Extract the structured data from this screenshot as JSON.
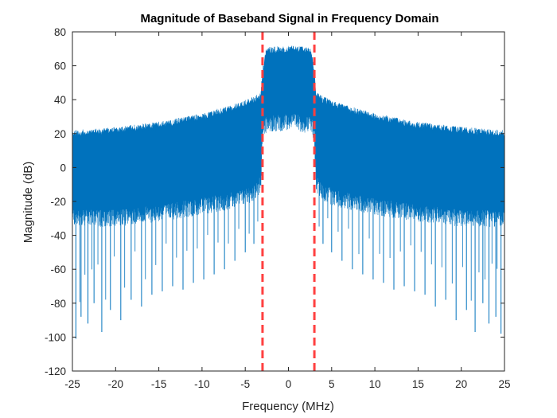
{
  "chart_data": {
    "type": "line",
    "title": "Magnitude of Baseband Signal in Frequency Domain",
    "xlabel": "Frequency (MHz)",
    "ylabel": "Magnitude (dB)",
    "xlim": [
      -25,
      25
    ],
    "ylim": [
      -120,
      80
    ],
    "xticks": [
      -25,
      -20,
      -15,
      -10,
      -5,
      0,
      5,
      10,
      15,
      20,
      25
    ],
    "yticks": [
      -120,
      -100,
      -80,
      -60,
      -40,
      -20,
      0,
      20,
      40,
      60,
      80
    ],
    "xtick_labels": [
      "-25",
      "-20",
      "-15",
      "-10",
      "-5",
      "0",
      "5",
      "10",
      "15",
      "20",
      "25"
    ],
    "ytick_labels": [
      "-120",
      "-100",
      "-80",
      "-60",
      "-40",
      "-20",
      "0",
      "20",
      "40",
      "60",
      "80"
    ],
    "grid": false,
    "box": true,
    "series_color": "#0072BD",
    "marker_line_color": "#FF4040",
    "vertical_markers": [
      -3,
      3
    ],
    "envelope": {
      "x": [
        -25,
        -20,
        -15,
        -10,
        -6,
        -4,
        -3.2,
        -3,
        -2.6,
        0,
        2.6,
        3,
        3.2,
        4,
        6,
        10,
        15,
        20,
        25
      ],
      "upper": [
        22,
        24,
        27,
        32,
        38,
        42,
        45,
        58,
        71,
        72,
        71,
        58,
        45,
        42,
        38,
        32,
        27,
        24,
        22
      ],
      "lower": [
        -25,
        -25,
        -22,
        -18,
        -14,
        -10,
        -5,
        25,
        30,
        32,
        30,
        25,
        -5,
        -10,
        -14,
        -18,
        -22,
        -25,
        -25
      ]
    },
    "deep_nulls": {
      "x": [
        -24.6,
        -24.0,
        -23.2,
        -22.5,
        -21.6,
        -20.6,
        -19.4,
        -18.2,
        -17.0,
        -15.8,
        -14.6,
        -13.4,
        -12.2,
        -11.0,
        -9.8,
        -8.6,
        -7.4,
        -6.2,
        -5.0,
        -4.0,
        4.0,
        5.0,
        6.2,
        7.4,
        8.6,
        9.8,
        11.0,
        12.2,
        13.4,
        14.6,
        15.8,
        17.0,
        18.2,
        19.4,
        20.6,
        21.6,
        22.5,
        23.2,
        24.0,
        24.6
      ],
      "y": [
        -101,
        -88,
        -92,
        -80,
        -97,
        -84,
        -90,
        -78,
        -82,
        -75,
        -73,
        -70,
        -72,
        -68,
        -66,
        -63,
        -60,
        -55,
        -50,
        -45,
        -45,
        -50,
        -55,
        -60,
        -63,
        -66,
        -68,
        -72,
        -70,
        -73,
        -75,
        -82,
        -78,
        -90,
        -84,
        -97,
        -80,
        -92,
        -88,
        -98
      ]
    }
  }
}
